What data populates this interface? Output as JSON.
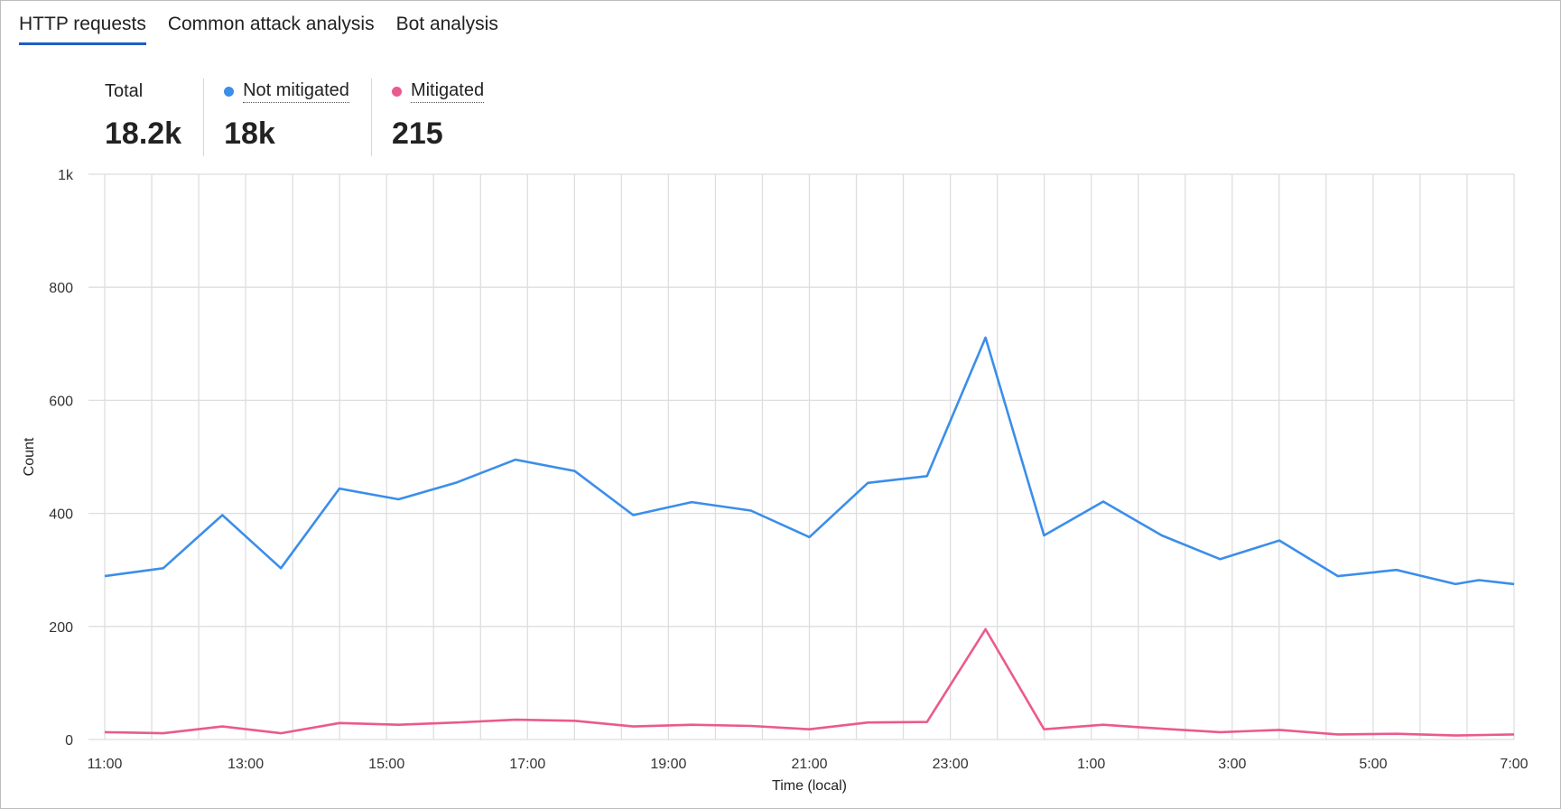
{
  "tabs": [
    {
      "label": "HTTP requests",
      "active": true
    },
    {
      "label": "Common attack analysis",
      "active": false
    },
    {
      "label": "Bot analysis",
      "active": false
    }
  ],
  "metrics": {
    "total": {
      "label": "Total",
      "value": "18.2k"
    },
    "not_mitigated": {
      "label": "Not mitigated",
      "value": "18k",
      "color": "#3b8eea"
    },
    "mitigated": {
      "label": "Mitigated",
      "value": "215",
      "color": "#ea5a8e"
    }
  },
  "chart_data": {
    "type": "line",
    "xlabel": "Time (local)",
    "ylabel": "Count",
    "ylim": [
      0,
      1000
    ],
    "y_ticks": [
      0,
      200,
      400,
      600,
      800,
      1000
    ],
    "y_tick_labels": [
      "0",
      "200",
      "400",
      "600",
      "800",
      "1k"
    ],
    "x_tick_labels": [
      "11:00",
      "13:00",
      "15:00",
      "17:00",
      "19:00",
      "21:00",
      "23:00",
      "1:00",
      "3:00",
      "5:00",
      "7:00"
    ],
    "x_range_hours": [
      0,
      20
    ],
    "grid": true,
    "series": [
      {
        "name": "Not mitigated",
        "color": "#3b8eea",
        "x": [
          0,
          0.83,
          1.67,
          2.5,
          3.33,
          4.17,
          5.0,
          5.83,
          6.67,
          7.5,
          8.33,
          9.17,
          10.0,
          10.83,
          11.67,
          12.5,
          13.33,
          14.17,
          15.0,
          15.83,
          16.67,
          17.5,
          18.33,
          19.17,
          19.5,
          20.0
        ],
        "values": [
          289,
          303,
          397,
          303,
          444,
          425,
          455,
          495,
          475,
          397,
          420,
          405,
          358,
          454,
          466,
          711,
          361,
          421,
          361,
          319,
          352,
          289,
          300,
          275,
          282,
          275
        ]
      },
      {
        "name": "Mitigated",
        "color": "#ea5a8e",
        "x": [
          0,
          0.83,
          1.67,
          2.5,
          3.33,
          4.17,
          5.0,
          5.83,
          6.67,
          7.5,
          8.33,
          9.17,
          10.0,
          10.83,
          11.67,
          12.5,
          13.33,
          14.17,
          15.0,
          15.83,
          16.67,
          17.5,
          18.33,
          19.17,
          20.0
        ],
        "values": [
          13,
          11,
          23,
          11,
          29,
          26,
          30,
          35,
          33,
          23,
          26,
          24,
          18,
          30,
          31,
          195,
          18,
          26,
          19,
          13,
          17,
          9,
          10,
          7,
          9
        ]
      }
    ]
  }
}
